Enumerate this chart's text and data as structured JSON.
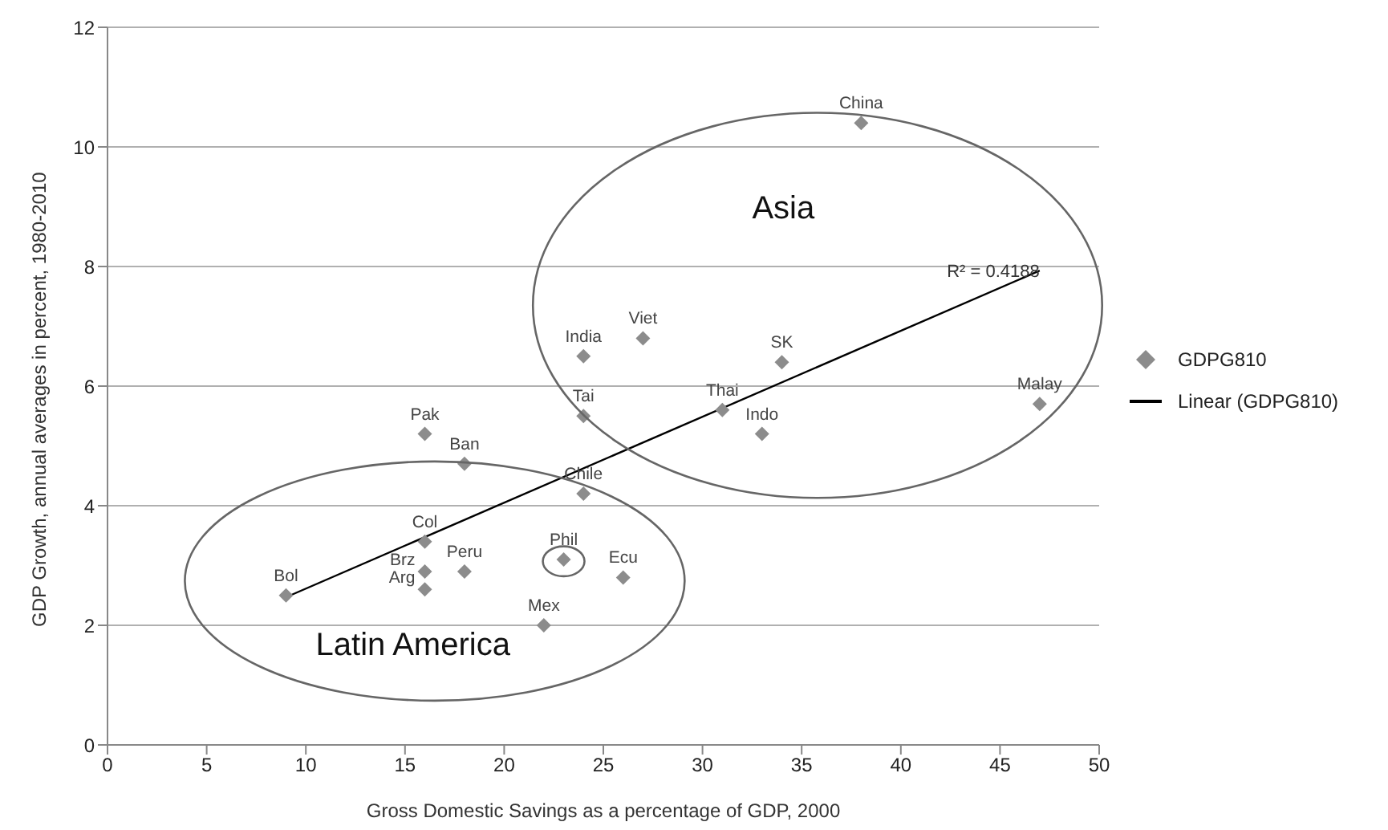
{
  "chart_data": {
    "type": "scatter",
    "xlabel": "Gross Domestic Savings as a percentage of  GDP, 2000",
    "ylabel": "GDP Growth, annual averages in percent, 1980-2010",
    "x": [
      9,
      16,
      16,
      16,
      18,
      22,
      23,
      26,
      24,
      16,
      18,
      24,
      24,
      27,
      38,
      34,
      31,
      33,
      47
    ],
    "series": [
      {
        "name": "GDPG810",
        "color": "#8c8c8c",
        "marker": "diamond",
        "values": [
          2.5,
          3.4,
          2.9,
          2.6,
          2.9,
          2.0,
          3.1,
          2.8,
          4.2,
          5.2,
          4.7,
          5.5,
          6.5,
          6.8,
          10.4,
          6.4,
          5.6,
          5.2,
          5.7
        ]
      },
      {
        "name": "Linear (GDPG810)",
        "type": "line",
        "color": "#000000",
        "marker": "none",
        "x": [
          9,
          47
        ],
        "values": [
          2.47,
          7.93
        ]
      }
    ],
    "xlim": [
      0,
      50
    ],
    "xticks": [
      0,
      5,
      10,
      15,
      20,
      25,
      30,
      35,
      40,
      45,
      50
    ],
    "ylim": [
      0,
      12
    ],
    "yticks": [
      0,
      2,
      4,
      6,
      8,
      10,
      12
    ],
    "grid": "y",
    "legend": "right",
    "annotations": [
      {
        "text": "Bol",
        "x": 9,
        "y": 2.5
      },
      {
        "text": "Col",
        "x": 16,
        "y": 3.4
      },
      {
        "text": "Brz",
        "x": 16,
        "y": 2.9
      },
      {
        "text": "Arg",
        "x": 16,
        "y": 2.6
      },
      {
        "text": "Peru",
        "x": 18,
        "y": 2.9
      },
      {
        "text": "Mex",
        "x": 22,
        "y": 2.0
      },
      {
        "text": "Phil",
        "x": 23,
        "y": 3.1
      },
      {
        "text": "Ecu",
        "x": 26,
        "y": 2.8
      },
      {
        "text": "Chile",
        "x": 24,
        "y": 4.2
      },
      {
        "text": "Pak",
        "x": 16,
        "y": 5.2
      },
      {
        "text": "Ban",
        "x": 18,
        "y": 4.7
      },
      {
        "text": "Tai",
        "x": 24,
        "y": 5.5
      },
      {
        "text": "India",
        "x": 24,
        "y": 6.5
      },
      {
        "text": "Viet",
        "x": 27,
        "y": 6.8
      },
      {
        "text": "China",
        "x": 38,
        "y": 10.4
      },
      {
        "text": "SK",
        "x": 34,
        "y": 6.4
      },
      {
        "text": "Thai",
        "x": 31,
        "y": 5.6
      },
      {
        "text": "Indo",
        "x": 33,
        "y": 5.2
      },
      {
        "text": "Malay",
        "x": 47,
        "y": 5.7
      },
      "Asia",
      "Latin America",
      {
        "text": "R² = 0.4188",
        "x": 47,
        "y": 7.93
      }
    ]
  }
}
